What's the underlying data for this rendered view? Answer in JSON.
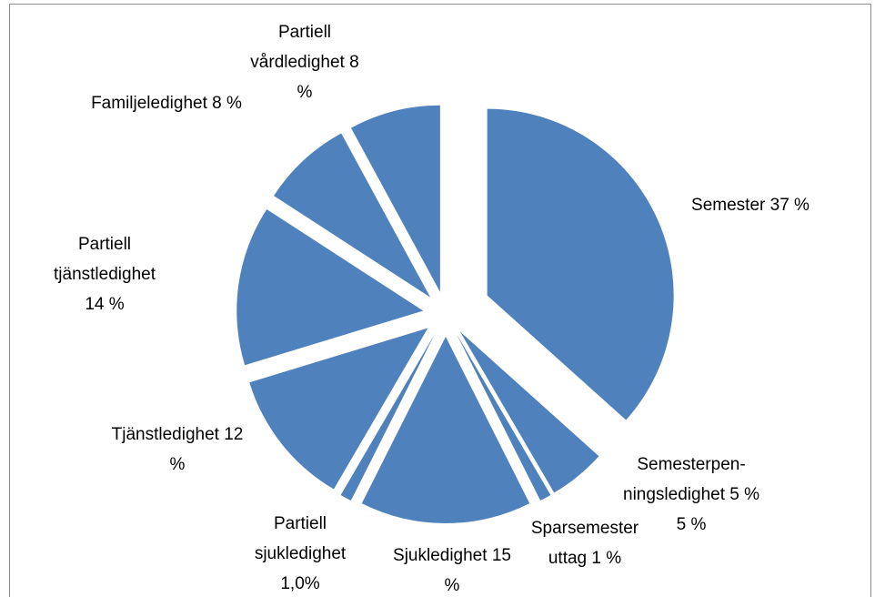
{
  "chart_data": {
    "type": "pie",
    "categories": [
      "Semester",
      "Semesterpen­ningsledighet 5 %",
      "Sparsemester uttag",
      "Sjukledighet",
      "Partiell sjukledighet",
      "Tjänstledighet",
      "Partiell tjänstledighet",
      "Familjeledighet",
      "Partiell vårdledighet"
    ],
    "values": [
      37,
      5,
      1,
      15,
      1.0,
      12,
      14,
      8,
      8
    ],
    "value_labels": [
      "37 %",
      "5 %",
      "1 %",
      "15 %",
      "1,0%",
      "12 %",
      "14 %",
      "8 %",
      "8 %"
    ],
    "color": "#4f81bd"
  }
}
